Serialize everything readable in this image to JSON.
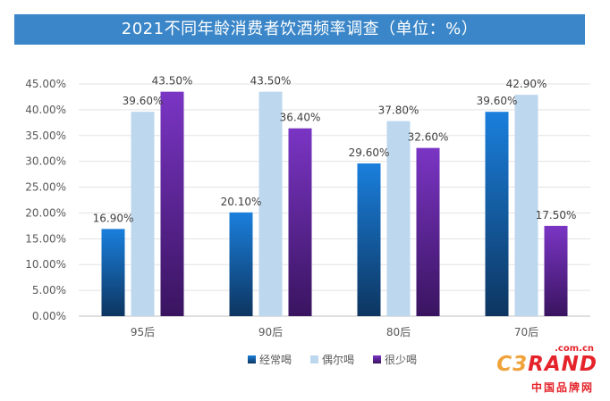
{
  "chart_data": {
    "type": "bar",
    "title": "2021不同年龄消费者饮酒频率调查（单位：%）",
    "categories": [
      "95后",
      "90后",
      "80后",
      "70后"
    ],
    "series": [
      {
        "name": "经常喝",
        "values": [
          16.9,
          20.1,
          29.6,
          39.6
        ],
        "color_top": "#1a7fdc",
        "color_bottom": "#0d3560"
      },
      {
        "name": "偶尔喝",
        "values": [
          39.6,
          43.5,
          37.8,
          42.9
        ],
        "color_top": "#bcd7ee",
        "color_bottom": "#bcd7ee"
      },
      {
        "name": "很少喝",
        "values": [
          43.5,
          36.4,
          32.6,
          17.5
        ],
        "color_top": "#7a35c4",
        "color_bottom": "#3a1460"
      }
    ],
    "y_ticks": [
      0,
      5,
      10,
      15,
      20,
      25,
      30,
      35,
      40,
      45
    ],
    "ylim": [
      0,
      45
    ],
    "y_unit": "%",
    "value_decimals": 2,
    "xlabel": "",
    "ylabel": "",
    "legend_position": "bottom-center",
    "grid": true
  },
  "logo": {
    "domain_text": ".com.cn",
    "brand_prefix": "C3",
    "brand_suffix": "RAND",
    "chinese_name": "中国品牌网"
  }
}
